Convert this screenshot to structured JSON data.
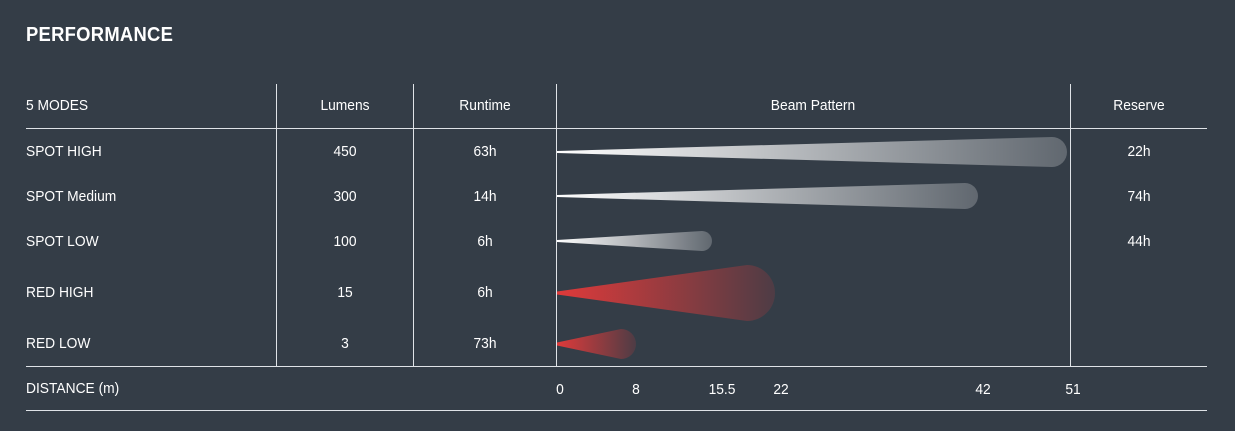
{
  "title": "PERFORMANCE",
  "headers": {
    "modes": "5 MODES",
    "lumens": "Lumens",
    "runtime": "Runtime",
    "beam": "Beam Pattern",
    "reserve": "Reserve"
  },
  "distance_label": "DISTANCE (m)",
  "colors": {
    "background": "#343d47",
    "white_beam": "#ffffff",
    "red_beam": "#e03a3a",
    "rule": "#dfe3e7"
  },
  "rows": [
    {
      "mode": "SPOT HIGH",
      "lumens": "450",
      "runtime": "63h",
      "reserve": "22h"
    },
    {
      "mode": "SPOT Medium",
      "lumens": "300",
      "runtime": "14h",
      "reserve": "74h"
    },
    {
      "mode": "SPOT LOW",
      "lumens": "100",
      "runtime": "6h",
      "reserve": "44h"
    },
    {
      "mode": "RED HIGH",
      "lumens": "15",
      "runtime": "6h",
      "reserve": ""
    },
    {
      "mode": "RED LOW",
      "lumens": "3",
      "runtime": "73h",
      "reserve": ""
    }
  ],
  "chart_data": {
    "type": "bar",
    "categories": [
      "SPOT HIGH",
      "SPOT Medium",
      "SPOT LOW",
      "RED HIGH",
      "RED LOW"
    ],
    "values": [
      51,
      42,
      15.5,
      22,
      8
    ],
    "colors": [
      "white",
      "white",
      "white",
      "red",
      "red"
    ],
    "xlabel": "DISTANCE (m)",
    "xticks": [
      "0",
      "8",
      "15.5",
      "22",
      "42",
      "51"
    ],
    "xlim": [
      0,
      51
    ]
  }
}
